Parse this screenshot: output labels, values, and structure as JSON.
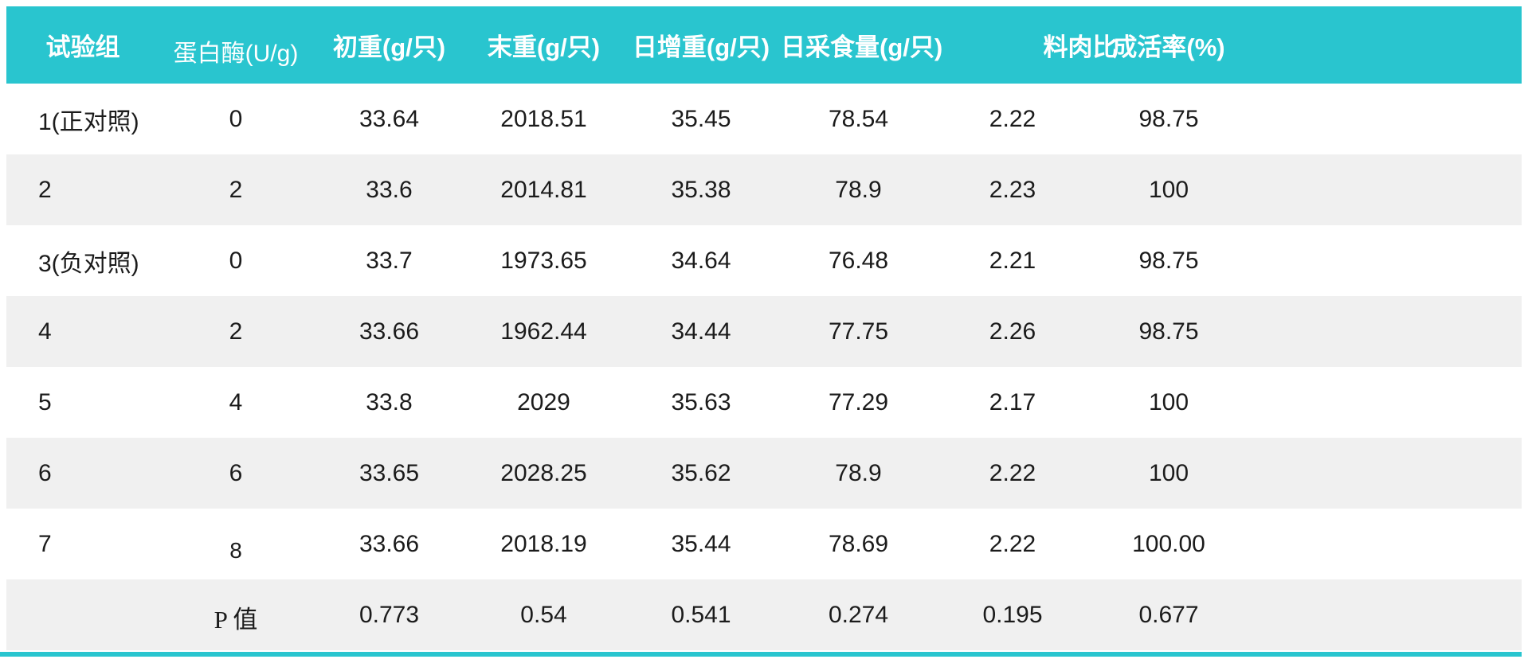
{
  "colors": {
    "accent": "#29c5cf",
    "stripe": "#f0f0f0",
    "header_text": "#ffffff",
    "body_text": "#1b1b1b"
  },
  "chart_data": {
    "type": "table",
    "title": "",
    "columns": [
      "试验组",
      "蛋白酶(U/g)",
      "初重(g/只)",
      "末重(g/只)",
      "日增重(g/只)",
      "日采食量(g/只)",
      "料肉比",
      "成活率(%)"
    ],
    "rows": [
      [
        "1(正对照)",
        "0",
        "33.64",
        "2018.51",
        "35.45",
        "78.54",
        "2.22",
        "98.75"
      ],
      [
        "2",
        "2",
        "33.6",
        "2014.81",
        "35.38",
        "78.9",
        "2.23",
        "100"
      ],
      [
        "3(负对照)",
        "0",
        "33.7",
        "1973.65",
        "34.64",
        "76.48",
        "2.21",
        "98.75"
      ],
      [
        "4",
        "2",
        "33.66",
        "1962.44",
        "34.44",
        "77.75",
        "2.26",
        "98.75"
      ],
      [
        "5",
        "4",
        "33.8",
        "2029",
        "35.63",
        "77.29",
        "2.17",
        "100"
      ],
      [
        "6",
        "6",
        "33.65",
        "2028.25",
        "35.62",
        "78.9",
        "2.22",
        "100"
      ],
      [
        "7",
        "8",
        "33.66",
        "2018.19",
        "35.44",
        "78.69",
        "2.22",
        "100.00"
      ],
      [
        "",
        "P 值",
        "0.773",
        "0.54",
        "0.541",
        "0.274",
        "0.195",
        "0.677"
      ]
    ],
    "layout": {
      "striped_rows": true,
      "stripe_pattern": "even rows shaded",
      "header_background": "#29c5cf",
      "bottom_accent_bar": true
    }
  }
}
